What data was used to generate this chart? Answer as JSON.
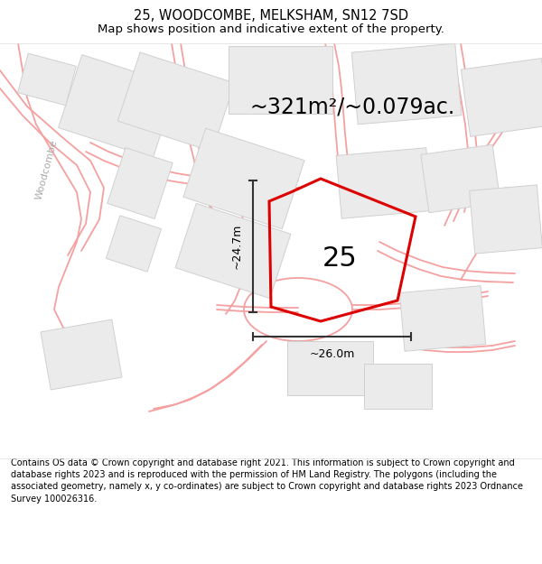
{
  "title": "25, WOODCOMBE, MELKSHAM, SN12 7SD",
  "subtitle": "Map shows position and indicative extent of the property.",
  "area_text": "~321m²/~0.079ac.",
  "number_label": "25",
  "dim_height": "~24.7m",
  "dim_width": "~26.0m",
  "street_label": "Woodcombe",
  "footer_text": "Contains OS data © Crown copyright and database right 2021. This information is subject to Crown copyright and database rights 2023 and is reproduced with the permission of HM Land Registry. The polygons (including the associated geometry, namely x, y co-ordinates) are subject to Crown copyright and database rights 2023 Ordnance Survey 100026316.",
  "bg_color": "#ffffff",
  "map_bg": "#ffffff",
  "plot_color": "#dd0000",
  "road_color": "#f5a0a0",
  "building_color": "#ebebeb",
  "building_edge": "#d0d0d0",
  "figsize": [
    6.0,
    6.25
  ],
  "dpi": 100,
  "title_fontsize": 10.5,
  "subtitle_fontsize": 9.5,
  "area_fontsize": 17,
  "label_fontsize": 22,
  "dim_fontsize": 9,
  "footer_fontsize": 7.0
}
